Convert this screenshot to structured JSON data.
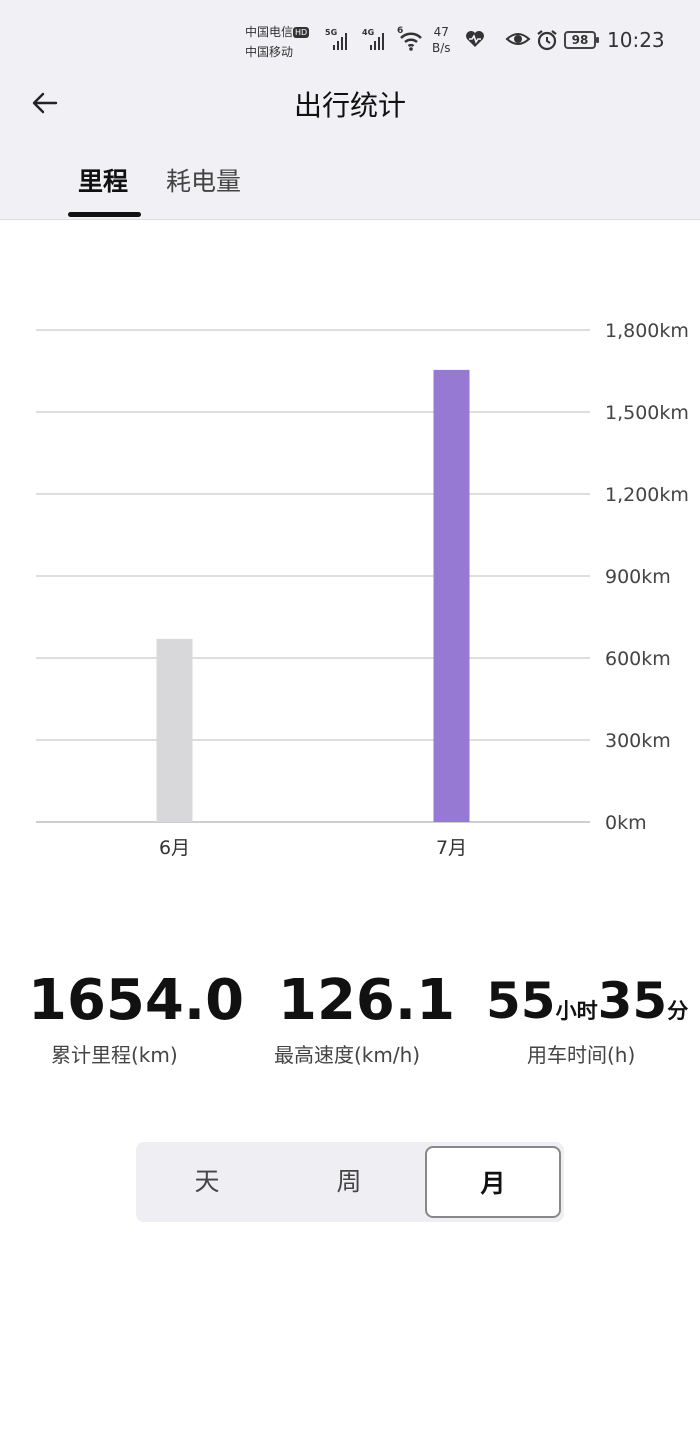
{
  "status_bar": {
    "carrier_1": "中国电信",
    "carrier_1_badge": "HD",
    "carrier_2": "中国移动",
    "signal_1_tag": "5G",
    "signal_2_tag": "4G",
    "wifi_tag": "6",
    "net_speed_value": "47",
    "net_speed_unit": "B/s",
    "battery": "98",
    "time": "10:23",
    "icons": [
      "heart-health-icon",
      "eye-icon",
      "alarm-icon"
    ]
  },
  "header": {
    "back_icon": "arrow-left-icon",
    "title": "出行统计"
  },
  "tabs": [
    {
      "label": "里程",
      "active": true
    },
    {
      "label": "耗电量",
      "active": false
    }
  ],
  "chart_data": {
    "type": "bar",
    "categories": [
      "6月",
      "7月"
    ],
    "values": [
      670,
      1654
    ],
    "ylim": [
      0,
      1800
    ],
    "yticks": [
      "0km",
      "300km",
      "600km",
      "900km",
      "1,200km",
      "1,500km",
      "1,800km"
    ],
    "ytick_values": [
      0,
      300,
      600,
      900,
      1200,
      1500,
      1800
    ],
    "colors": [
      "#d8d8da",
      "#9679d3"
    ],
    "grid": true,
    "y_axis_side": "right"
  },
  "stats": {
    "distance": {
      "value": "1654.0",
      "label": "累计里程(km)"
    },
    "max_speed": {
      "value": "126.1",
      "label": "最高速度(km/h)"
    },
    "drive_time": {
      "hours": "55",
      "hours_unit": "小时",
      "minutes": "35",
      "minutes_unit": "分",
      "label": "用车时间(h)"
    }
  },
  "period_selector": {
    "options": [
      "天",
      "周",
      "月"
    ],
    "selected": "月"
  }
}
